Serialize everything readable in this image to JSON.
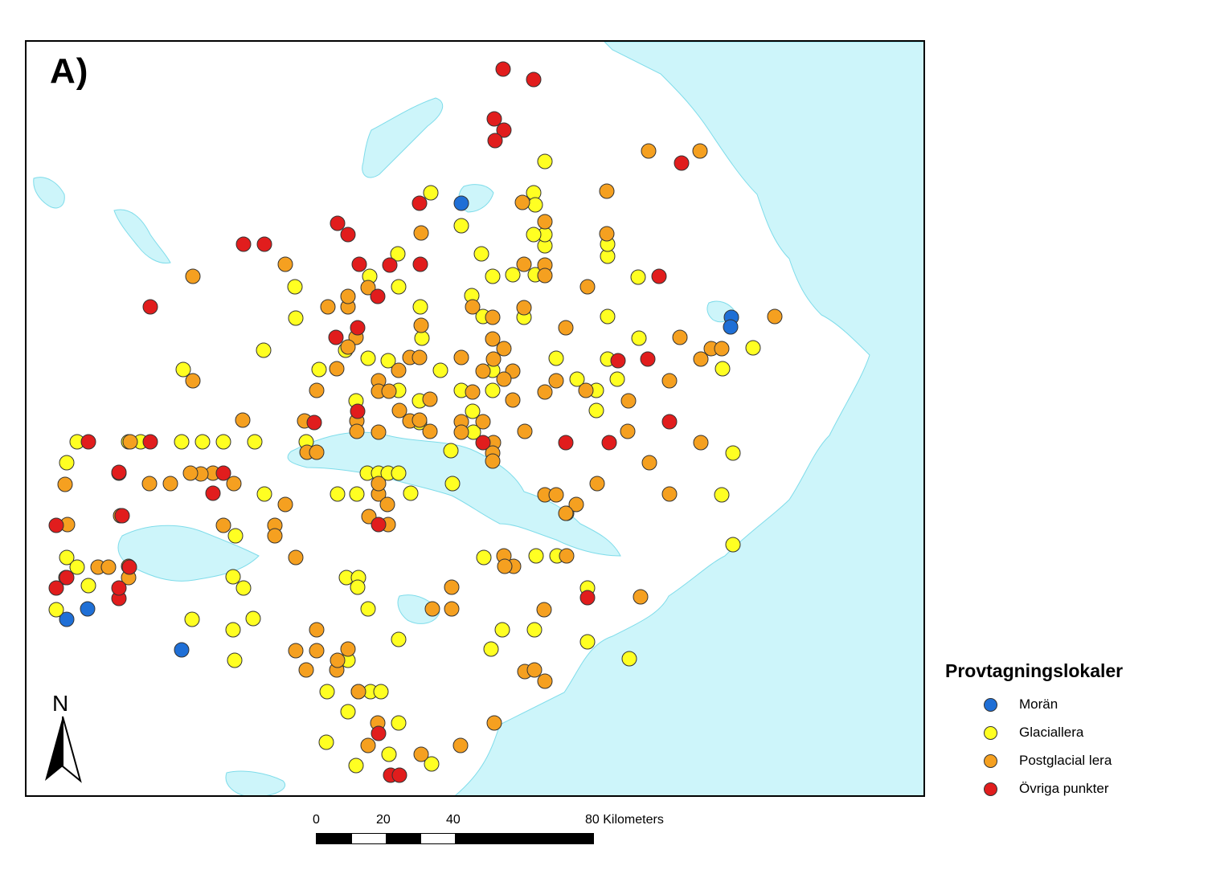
{
  "panel_label": "A)",
  "north_label": "N",
  "legend": {
    "title": "Provtagningslokaler",
    "items": [
      {
        "label": "Morän",
        "color": "#1f6fd6"
      },
      {
        "label": "Glaciallera",
        "color": "#ffff22"
      },
      {
        "label": "Postglacial lera",
        "color": "#f5a020"
      },
      {
        "label": "Övriga punkter",
        "color": "#e11d1d"
      }
    ]
  },
  "scalebar": {
    "ticks": [
      "0",
      "20",
      "40",
      "80 Kilometers"
    ]
  },
  "colors": {
    "water": "#cdf5fa",
    "water_stroke": "#7fdcea",
    "land": "#ffffff",
    "point_stroke": "#333333"
  },
  "sample_points": {
    "moran": [
      [
        572,
        251
      ],
      [
        908,
        393
      ],
      [
        907,
        405
      ],
      [
        81,
        769
      ],
      [
        107,
        756
      ],
      [
        224,
        807
      ]
    ],
    "glaciallera": [
      [
        534,
        238
      ],
      [
        662,
        238
      ],
      [
        664,
        253
      ],
      [
        676,
        199
      ],
      [
        572,
        279
      ],
      [
        597,
        314
      ],
      [
        493,
        314
      ],
      [
        494,
        355
      ],
      [
        458,
        342
      ],
      [
        365,
        355
      ],
      [
        366,
        394
      ],
      [
        326,
        434
      ],
      [
        428,
        434
      ],
      [
        456,
        444
      ],
      [
        481,
        447
      ],
      [
        521,
        380
      ],
      [
        585,
        366
      ],
      [
        599,
        392
      ],
      [
        611,
        342
      ],
      [
        636,
        340
      ],
      [
        650,
        393
      ],
      [
        664,
        340
      ],
      [
        676,
        304
      ],
      [
        676,
        290
      ],
      [
        662,
        290
      ],
      [
        754,
        317
      ],
      [
        754,
        302
      ],
      [
        792,
        343
      ],
      [
        754,
        392
      ],
      [
        793,
        419
      ],
      [
        754,
        445
      ],
      [
        766,
        470
      ],
      [
        716,
        470
      ],
      [
        740,
        484
      ],
      [
        740,
        509
      ],
      [
        690,
        444
      ],
      [
        611,
        459
      ],
      [
        611,
        484
      ],
      [
        572,
        484
      ],
      [
        586,
        510
      ],
      [
        546,
        459
      ],
      [
        520,
        497
      ],
      [
        494,
        484
      ],
      [
        520,
        524
      ],
      [
        559,
        559
      ],
      [
        587,
        536
      ],
      [
        441,
        497
      ],
      [
        455,
        587
      ],
      [
        469,
        587
      ],
      [
        481,
        587
      ],
      [
        494,
        587
      ],
      [
        509,
        612
      ],
      [
        561,
        600
      ],
      [
        418,
        613
      ],
      [
        442,
        613
      ],
      [
        327,
        613
      ],
      [
        291,
        665
      ],
      [
        288,
        716
      ],
      [
        301,
        730
      ],
      [
        313,
        768
      ],
      [
        288,
        782
      ],
      [
        290,
        820
      ],
      [
        237,
        769
      ],
      [
        429,
        717
      ],
      [
        444,
        717
      ],
      [
        443,
        729
      ],
      [
        456,
        756
      ],
      [
        431,
        820
      ],
      [
        405,
        859
      ],
      [
        431,
        884
      ],
      [
        444,
        859
      ],
      [
        459,
        859
      ],
      [
        472,
        859
      ],
      [
        404,
        922
      ],
      [
        441,
        951
      ],
      [
        494,
        794
      ],
      [
        482,
        937
      ],
      [
        535,
        949
      ],
      [
        494,
        898
      ],
      [
        609,
        806
      ],
      [
        623,
        782
      ],
      [
        663,
        782
      ],
      [
        729,
        730
      ],
      [
        729,
        797
      ],
      [
        781,
        818
      ],
      [
        665,
        690
      ],
      [
        691,
        690
      ],
      [
        703,
        637
      ],
      [
        600,
        692
      ],
      [
        896,
        614
      ],
      [
        910,
        562
      ],
      [
        910,
        676
      ],
      [
        935,
        431
      ],
      [
        897,
        457
      ],
      [
        81,
        574
      ],
      [
        94,
        548
      ],
      [
        158,
        548
      ],
      [
        173,
        548
      ],
      [
        224,
        548
      ],
      [
        250,
        548
      ],
      [
        276,
        548
      ],
      [
        315,
        548
      ],
      [
        379,
        548
      ],
      [
        81,
        692
      ],
      [
        94,
        704
      ],
      [
        108,
        727
      ],
      [
        68,
        757
      ],
      [
        226,
        458
      ],
      [
        523,
        419
      ],
      [
        395,
        458
      ]
    ],
    "postglacial": [
      [
        805,
        186
      ],
      [
        869,
        186
      ],
      [
        753,
        236
      ],
      [
        648,
        250
      ],
      [
        676,
        274
      ],
      [
        753,
        289
      ],
      [
        676,
        328
      ],
      [
        650,
        327
      ],
      [
        676,
        341
      ],
      [
        729,
        355
      ],
      [
        702,
        406
      ],
      [
        650,
        381
      ],
      [
        611,
        393
      ],
      [
        611,
        420
      ],
      [
        625,
        432
      ],
      [
        636,
        460
      ],
      [
        599,
        460
      ],
      [
        625,
        470
      ],
      [
        636,
        496
      ],
      [
        586,
        486
      ],
      [
        612,
        445
      ],
      [
        572,
        443
      ],
      [
        508,
        443
      ],
      [
        520,
        443
      ],
      [
        494,
        459
      ],
      [
        469,
        472
      ],
      [
        469,
        485
      ],
      [
        482,
        485
      ],
      [
        495,
        509
      ],
      [
        508,
        522
      ],
      [
        520,
        521
      ],
      [
        533,
        495
      ],
      [
        533,
        535
      ],
      [
        469,
        536
      ],
      [
        442,
        522
      ],
      [
        442,
        535
      ],
      [
        417,
        457
      ],
      [
        441,
        418
      ],
      [
        406,
        380
      ],
      [
        431,
        380
      ],
      [
        431,
        367
      ],
      [
        456,
        356
      ],
      [
        353,
        327
      ],
      [
        522,
        288
      ],
      [
        238,
        342
      ],
      [
        238,
        472
      ],
      [
        300,
        521
      ],
      [
        377,
        522
      ],
      [
        380,
        561
      ],
      [
        392,
        561
      ],
      [
        392,
        484
      ],
      [
        431,
        430
      ],
      [
        522,
        403
      ],
      [
        586,
        380
      ],
      [
        572,
        523
      ],
      [
        599,
        523
      ],
      [
        572,
        536
      ],
      [
        612,
        549
      ],
      [
        651,
        535
      ],
      [
        611,
        562
      ],
      [
        611,
        572
      ],
      [
        676,
        486
      ],
      [
        690,
        472
      ],
      [
        727,
        484
      ],
      [
        780,
        497
      ],
      [
        779,
        535
      ],
      [
        831,
        472
      ],
      [
        844,
        418
      ],
      [
        870,
        445
      ],
      [
        883,
        432
      ],
      [
        896,
        432
      ],
      [
        962,
        392
      ],
      [
        870,
        549
      ],
      [
        806,
        574
      ],
      [
        831,
        613
      ],
      [
        741,
        600
      ],
      [
        676,
        614
      ],
      [
        690,
        614
      ],
      [
        715,
        626
      ],
      [
        702,
        637
      ],
      [
        625,
        690
      ],
      [
        637,
        703
      ],
      [
        626,
        703
      ],
      [
        703,
        690
      ],
      [
        675,
        757
      ],
      [
        560,
        729
      ],
      [
        560,
        756
      ],
      [
        536,
        756
      ],
      [
        795,
        741
      ],
      [
        651,
        834
      ],
      [
        663,
        832
      ],
      [
        676,
        846
      ],
      [
        613,
        898
      ],
      [
        571,
        926
      ],
      [
        522,
        937
      ],
      [
        456,
        926
      ],
      [
        468,
        898
      ],
      [
        431,
        806
      ],
      [
        417,
        832
      ],
      [
        444,
        859
      ],
      [
        379,
        832
      ],
      [
        366,
        808
      ],
      [
        392,
        782
      ],
      [
        392,
        808
      ],
      [
        418,
        820
      ],
      [
        469,
        613
      ],
      [
        469,
        600
      ],
      [
        480,
        626
      ],
      [
        457,
        641
      ],
      [
        481,
        651
      ],
      [
        366,
        692
      ],
      [
        353,
        626
      ],
      [
        340,
        652
      ],
      [
        340,
        665
      ],
      [
        276,
        652
      ],
      [
        289,
        600
      ],
      [
        263,
        587
      ],
      [
        248,
        588
      ],
      [
        235,
        587
      ],
      [
        210,
        600
      ],
      [
        184,
        600
      ],
      [
        146,
        587
      ],
      [
        148,
        640
      ],
      [
        79,
        601
      ],
      [
        82,
        651
      ],
      [
        80,
        717
      ],
      [
        120,
        704
      ],
      [
        133,
        704
      ],
      [
        158,
        717
      ],
      [
        158,
        703
      ],
      [
        160,
        548
      ]
    ],
    "ovriga": [
      [
        624,
        84
      ],
      [
        662,
        97
      ],
      [
        613,
        146
      ],
      [
        625,
        160
      ],
      [
        614,
        173
      ],
      [
        846,
        201
      ],
      [
        520,
        251
      ],
      [
        418,
        276
      ],
      [
        431,
        290
      ],
      [
        301,
        302
      ],
      [
        327,
        302
      ],
      [
        445,
        327
      ],
      [
        483,
        328
      ],
      [
        521,
        327
      ],
      [
        468,
        367
      ],
      [
        443,
        406
      ],
      [
        416,
        418
      ],
      [
        185,
        380
      ],
      [
        818,
        342
      ],
      [
        804,
        445
      ],
      [
        767,
        447
      ],
      [
        831,
        523
      ],
      [
        756,
        549
      ],
      [
        702,
        549
      ],
      [
        599,
        549
      ],
      [
        389,
        524
      ],
      [
        443,
        510
      ],
      [
        469,
        651
      ],
      [
        108,
        548
      ],
      [
        185,
        548
      ],
      [
        146,
        586
      ],
      [
        276,
        587
      ],
      [
        263,
        612
      ],
      [
        68,
        652
      ],
      [
        150,
        640
      ],
      [
        81,
        717
      ],
      [
        68,
        730
      ],
      [
        146,
        743
      ],
      [
        146,
        730
      ],
      [
        159,
        704
      ],
      [
        729,
        742
      ],
      [
        469,
        911
      ],
      [
        484,
        963
      ],
      [
        495,
        963
      ]
    ]
  }
}
